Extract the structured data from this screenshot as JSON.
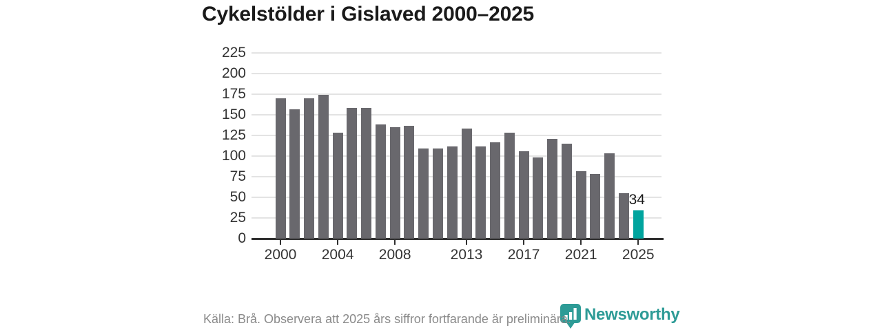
{
  "title": "Cykelstölder i Gislaved 2000–2025",
  "chart_data": {
    "type": "bar",
    "title": "Cykelstölder i Gislaved 2000–2025",
    "categories": [
      "2000",
      "2001",
      "2002",
      "2003",
      "2004",
      "2005",
      "2006",
      "2007",
      "2008",
      "2009",
      "2010",
      "2011",
      "2012",
      "2013",
      "2014",
      "2015",
      "2016",
      "2017",
      "2018",
      "2019",
      "2020",
      "2021",
      "2022",
      "2023",
      "2024",
      "2025"
    ],
    "values": [
      170,
      157,
      170,
      174,
      128,
      158,
      158,
      138,
      135,
      137,
      109,
      109,
      112,
      133,
      112,
      117,
      128,
      106,
      98,
      121,
      115,
      82,
      78,
      103,
      55,
      34
    ],
    "xlabel": "",
    "ylabel": "",
    "ylim": [
      0,
      225
    ],
    "ytick_step": 25,
    "yticks": [
      0,
      25,
      50,
      75,
      100,
      125,
      150,
      175,
      200,
      225
    ],
    "xtick_labels": [
      "2000",
      "2004",
      "2008",
      "2013",
      "2017",
      "2021",
      "2025"
    ],
    "grid": true,
    "legend": "none",
    "bar_color": "#69686d",
    "highlight": {
      "index": 25,
      "category": "2025",
      "value": 34,
      "label": "34",
      "color": "#00a49e"
    }
  },
  "footer": {
    "source_note": "Källa: Brå. Observera att 2025 års siffror fortfarande är preliminära.",
    "brand_name": "Newsworthy",
    "brand_color": "#2d9b96"
  },
  "colors": {
    "background": "#ffffff",
    "title_text": "#1a1a1a",
    "axis_text": "#333333",
    "gridline": "#e3e3e3",
    "axis_line": "#2f2f2f",
    "source_text": "#8a8a8a"
  }
}
